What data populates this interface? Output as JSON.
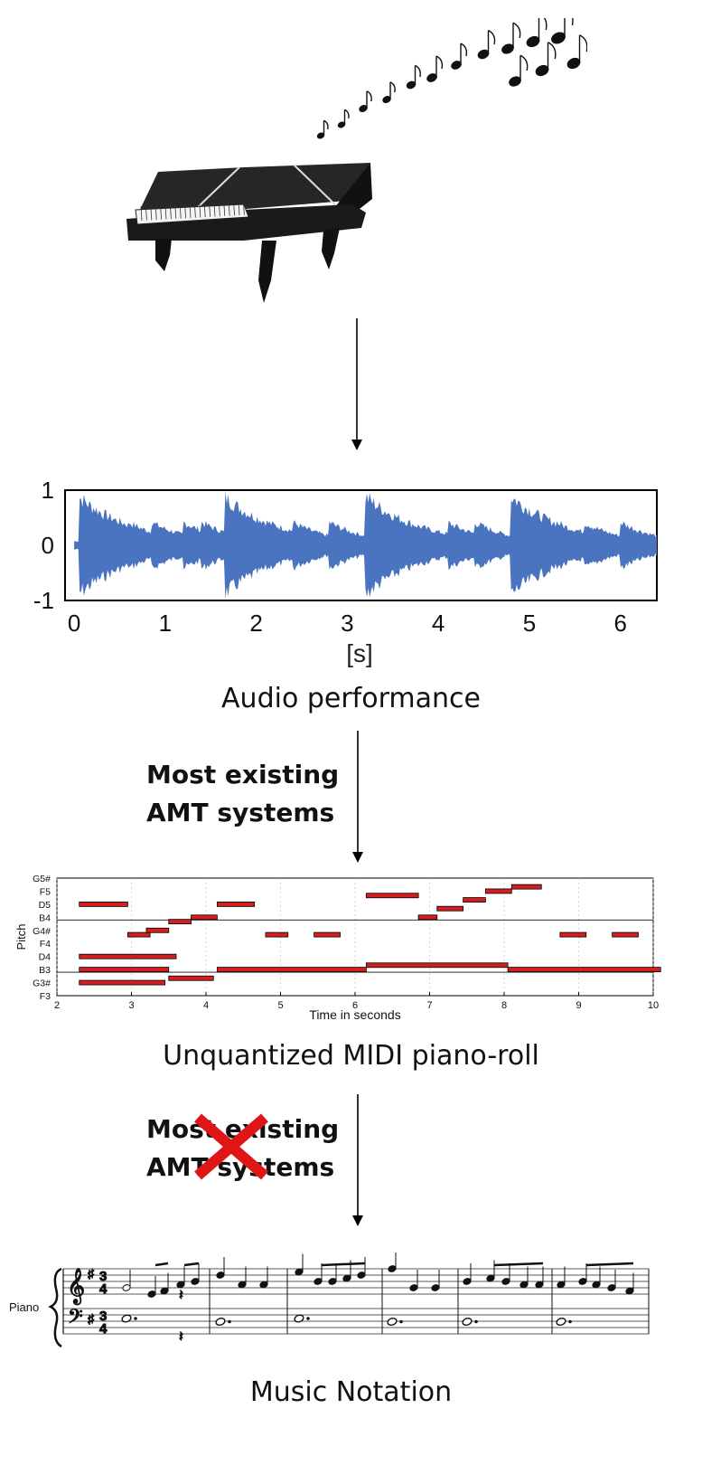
{
  "captions": {
    "audio": "Audio performance",
    "midi": "Unquantized MIDI piano-roll",
    "notation": "Music Notation"
  },
  "labels": {
    "amt_line1": "Most existing",
    "amt_line2": "AMT systems",
    "amt_crossed_line1": "Most existing",
    "amt_crossed_line2": "AMT systems"
  },
  "icons": {
    "piano": "grand-piano-icon",
    "notes": "music-notes-icon",
    "cross": "red-x-icon",
    "arrow": "down-arrow-icon"
  },
  "colors": {
    "waveform": "#4a74c0",
    "note_fill": "#d41f1f",
    "cross": "#e01616"
  },
  "chart_data": [
    {
      "type": "line",
      "title": "",
      "xlabel": "[s]",
      "ylabel": "",
      "xlim": [
        -0.1,
        6.4
      ],
      "ylim": [
        -1,
        1
      ],
      "x_ticks": [
        "0",
        "1",
        "2",
        "3",
        "4",
        "5",
        "6"
      ],
      "y_ticks": [
        "1",
        "0",
        "-1"
      ],
      "onsets_s": [
        0.05,
        1.65,
        3.2,
        4.8
      ],
      "grid": false
    },
    {
      "type": "bar",
      "title": "",
      "xlabel": "Time in seconds",
      "ylabel": "Pitch",
      "xlim": [
        2,
        10
      ],
      "x_ticks": [
        "2",
        "3",
        "4",
        "5",
        "6",
        "7",
        "8",
        "9",
        "10"
      ],
      "y_ticks": [
        "G5#",
        "F5",
        "D5",
        "B4",
        "G4#",
        "F4",
        "D4",
        "B3",
        "G3#",
        "F3"
      ],
      "notes": [
        {
          "start": 2.3,
          "end": 2.95,
          "pitch": 74
        },
        {
          "start": 2.3,
          "end": 3.6,
          "pitch": 62
        },
        {
          "start": 2.3,
          "end": 3.5,
          "pitch": 59
        },
        {
          "start": 2.3,
          "end": 3.45,
          "pitch": 56
        },
        {
          "start": 2.95,
          "end": 3.25,
          "pitch": 67
        },
        {
          "start": 3.2,
          "end": 3.5,
          "pitch": 68
        },
        {
          "start": 3.5,
          "end": 3.8,
          "pitch": 70
        },
        {
          "start": 3.5,
          "end": 4.1,
          "pitch": 57
        },
        {
          "start": 3.8,
          "end": 4.15,
          "pitch": 71
        },
        {
          "start": 4.15,
          "end": 6.15,
          "pitch": 59
        },
        {
          "start": 4.15,
          "end": 4.65,
          "pitch": 74
        },
        {
          "start": 4.8,
          "end": 5.1,
          "pitch": 67
        },
        {
          "start": 5.45,
          "end": 5.8,
          "pitch": 67
        },
        {
          "start": 6.15,
          "end": 8.05,
          "pitch": 60
        },
        {
          "start": 6.15,
          "end": 6.85,
          "pitch": 76
        },
        {
          "start": 6.85,
          "end": 7.1,
          "pitch": 71
        },
        {
          "start": 7.1,
          "end": 7.45,
          "pitch": 73
        },
        {
          "start": 7.45,
          "end": 7.75,
          "pitch": 75
        },
        {
          "start": 7.75,
          "end": 8.1,
          "pitch": 77
        },
        {
          "start": 8.05,
          "end": 10.1,
          "pitch": 59
        },
        {
          "start": 8.1,
          "end": 8.5,
          "pitch": 78
        },
        {
          "start": 8.75,
          "end": 9.1,
          "pitch": 67
        },
        {
          "start": 9.45,
          "end": 9.8,
          "pitch": 67
        }
      ]
    }
  ],
  "score": {
    "instrument": "Piano",
    "time_signature": [
      "3",
      "4"
    ],
    "measures": 6
  }
}
